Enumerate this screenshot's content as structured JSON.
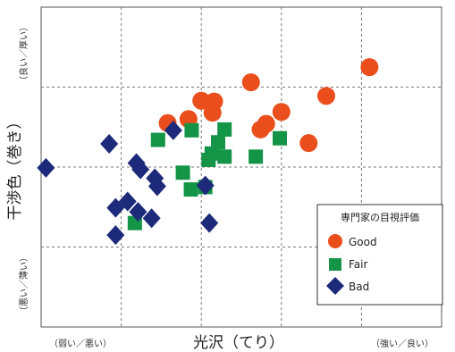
{
  "chart_data": {
    "type": "scatter",
    "title": "",
    "xlabel": "光沢（てり）",
    "ylabel": "干渉色（巻き）",
    "x_end_labels": {
      "left": "（弱い／悪い）",
      "right": "（強い／良い）"
    },
    "y_end_labels": {
      "top": "（良い／厚い）",
      "bottom": "（悪い／薄い）"
    },
    "xlim": [
      0,
      5
    ],
    "ylim": [
      0,
      4
    ],
    "grid": true,
    "legend": {
      "title": "専門家の目視評価",
      "position": "bottom-right"
    },
    "series": [
      {
        "name": "Good",
        "marker": "circle",
        "color": "#ea4e1c",
        "points": [
          [
            1.58,
            2.55
          ],
          [
            1.84,
            2.6
          ],
          [
            2.0,
            2.83
          ],
          [
            2.14,
            2.68
          ],
          [
            2.16,
            2.82
          ],
          [
            2.62,
            3.06
          ],
          [
            2.74,
            2.47
          ],
          [
            2.81,
            2.54
          ],
          [
            3.0,
            2.69
          ],
          [
            3.34,
            2.3
          ],
          [
            3.56,
            2.89
          ],
          [
            4.1,
            3.25
          ]
        ]
      },
      {
        "name": "Fair",
        "marker": "square",
        "color": "#149446",
        "points": [
          [
            1.46,
            2.34
          ],
          [
            1.77,
            1.93
          ],
          [
            1.87,
            1.72
          ],
          [
            1.88,
            2.46
          ],
          [
            2.05,
            1.75
          ],
          [
            2.09,
            2.09
          ],
          [
            2.13,
            2.17
          ],
          [
            2.21,
            2.31
          ],
          [
            2.29,
            2.47
          ],
          [
            2.29,
            2.13
          ],
          [
            2.68,
            2.13
          ],
          [
            2.98,
            2.36
          ],
          [
            1.17,
            1.3
          ]
        ]
      },
      {
        "name": "Bad",
        "marker": "diamond",
        "color": "#1d2a7a",
        "points": [
          [
            0.06,
            1.99
          ],
          [
            0.85,
            2.29
          ],
          [
            1.19,
            2.05
          ],
          [
            1.24,
            1.97
          ],
          [
            1.42,
            1.86
          ],
          [
            1.45,
            1.76
          ],
          [
            1.38,
            1.36
          ],
          [
            1.65,
            2.46
          ],
          [
            2.05,
            1.77
          ],
          [
            2.1,
            1.3
          ],
          [
            1.21,
            1.44
          ],
          [
            0.93,
            1.49
          ],
          [
            1.08,
            1.57
          ],
          [
            0.93,
            1.15
          ]
        ]
      }
    ]
  }
}
